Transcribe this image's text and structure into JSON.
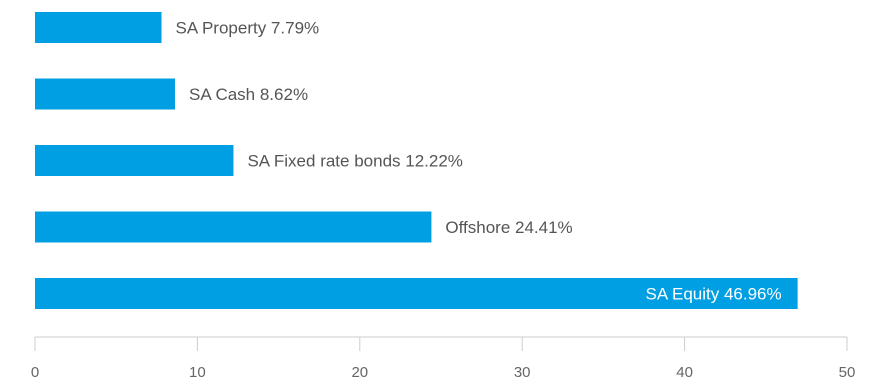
{
  "chart_data": {
    "type": "bar",
    "orientation": "horizontal",
    "categories": [
      "SA Property",
      "SA Cash",
      "SA Fixed rate bonds",
      "Offshore",
      "SA Equity"
    ],
    "values": [
      7.79,
      8.62,
      12.22,
      24.41,
      46.96
    ],
    "data_labels": [
      "SA Property 7.79%",
      "SA Cash 8.62%",
      "SA Fixed rate bonds 12.22%",
      "Offshore 24.41%",
      "SA Equity 46.96%"
    ],
    "xlim": [
      0,
      50
    ],
    "x_ticks": [
      0,
      10,
      20,
      30,
      40,
      50
    ],
    "x_tick_labels": [
      "0",
      "10",
      "20",
      "30",
      "40",
      "50"
    ],
    "grid": false,
    "legend": "none",
    "colors": {
      "bar": "#009FE3",
      "label_outside": "#555555",
      "label_inside": "#ffffff",
      "axis": "#cccccc"
    }
  }
}
